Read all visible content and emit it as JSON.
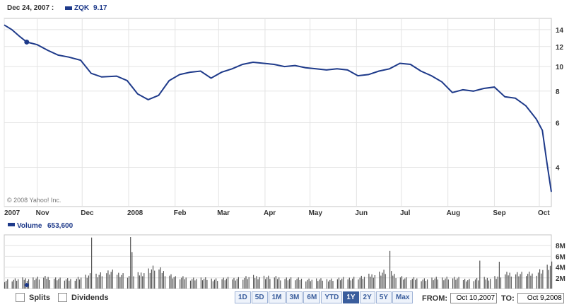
{
  "header": {
    "date": "Dec 24, 2007 :",
    "ticker": "ZQK",
    "value": "9.17",
    "series_color": "#1e3a8a"
  },
  "copyright": "© 2008 Yahoo! Inc.",
  "volume_header": {
    "label": "Volume",
    "value": "653,600"
  },
  "controls": {
    "splits_label": "Splits",
    "dividends_label": "Dividends",
    "ranges": [
      "1D",
      "5D",
      "1M",
      "3M",
      "6M",
      "YTD",
      "1Y",
      "2Y",
      "5Y",
      "Max"
    ],
    "active_range": "1Y",
    "from_label": "FROM:",
    "from_value": "Oct 10,2007",
    "to_label": "TO:",
    "to_value": "Oct 9,2008"
  },
  "chart_data": [
    {
      "type": "line",
      "title": "",
      "series": [
        {
          "name": "ZQK",
          "x": [
            "2007-10-10",
            "2007-10-15",
            "2007-10-20",
            "2007-10-25",
            "2007-11-01",
            "2007-11-08",
            "2007-11-15",
            "2007-11-22",
            "2007-11-30",
            "2007-12-07",
            "2007-12-14",
            "2007-12-24",
            "2007-12-31",
            "2008-01-07",
            "2008-01-14",
            "2008-01-21",
            "2008-01-28",
            "2008-02-04",
            "2008-02-11",
            "2008-02-18",
            "2008-02-25",
            "2008-03-03",
            "2008-03-10",
            "2008-03-17",
            "2008-03-24",
            "2008-03-31",
            "2008-04-07",
            "2008-04-14",
            "2008-04-21",
            "2008-04-28",
            "2008-05-05",
            "2008-05-12",
            "2008-05-19",
            "2008-05-26",
            "2008-06-02",
            "2008-06-09",
            "2008-06-16",
            "2008-06-23",
            "2008-06-30",
            "2008-07-07",
            "2008-07-14",
            "2008-07-21",
            "2008-07-28",
            "2008-08-04",
            "2008-08-11",
            "2008-08-18",
            "2008-08-25",
            "2008-09-01",
            "2008-09-08",
            "2008-09-15",
            "2008-09-22",
            "2008-09-29",
            "2008-10-03",
            "2008-10-06",
            "2008-10-09"
          ],
          "values": [
            14.6,
            14.0,
            13.2,
            12.5,
            12.2,
            11.6,
            11.1,
            10.9,
            10.6,
            9.4,
            9.1,
            9.17,
            8.8,
            7.8,
            7.4,
            7.7,
            8.8,
            9.3,
            9.5,
            9.6,
            9.0,
            9.5,
            9.8,
            10.2,
            10.4,
            10.3,
            10.2,
            10.0,
            10.1,
            9.9,
            9.8,
            9.7,
            9.8,
            9.7,
            9.2,
            9.3,
            9.6,
            9.8,
            10.3,
            10.2,
            9.6,
            9.2,
            8.7,
            7.9,
            8.1,
            8.0,
            8.2,
            8.3,
            7.6,
            7.5,
            7.0,
            6.2,
            5.6,
            4.2,
            3.2
          ]
        }
      ],
      "xaxis_labels": [
        "2007",
        "Nov",
        "Dec",
        "2008",
        "Feb",
        "Mar",
        "Apr",
        "May",
        "Jun",
        "Jul",
        "Aug",
        "Sep",
        "Oct"
      ],
      "yaxis_ticks": [
        4,
        6,
        8,
        10,
        12,
        14
      ],
      "ylim": [
        2.8,
        15.5
      ],
      "log_scale": true,
      "grid": true
    },
    {
      "type": "bar",
      "title": "",
      "series": [
        {
          "name": "Volume",
          "x": [
            "2007-10-10",
            "2007-10-25",
            "2007-11-08",
            "2007-11-22",
            "2007-12-06",
            "2007-12-20",
            "2008-01-04",
            "2008-01-18",
            "2008-02-01",
            "2008-02-15",
            "2008-02-29",
            "2008-03-14",
            "2008-03-28",
            "2008-04-11",
            "2008-04-25",
            "2008-05-09",
            "2008-05-23",
            "2008-06-06",
            "2008-06-20",
            "2008-07-04",
            "2008-07-18",
            "2008-08-01",
            "2008-08-15",
            "2008-08-29",
            "2008-09-12",
            "2008-09-26",
            "2008-10-09"
          ],
          "values": [
            1500000,
            1800000,
            2000000,
            1600000,
            2400000,
            3000000,
            2200000,
            3800000,
            2000000,
            1800000,
            1700000,
            1900000,
            2200000,
            1900000,
            1700000,
            1600000,
            1800000,
            2100000,
            3100000,
            1800000,
            1700000,
            2000000,
            1600000,
            1900000,
            2800000,
            2600000,
            4200000
          ]
        }
      ],
      "peaks": [
        {
          "x": "2007-12-07",
          "value": 9500000
        },
        {
          "x": "2008-01-02",
          "value": 9600000
        },
        {
          "x": "2008-01-03",
          "value": 6800000
        },
        {
          "x": "2008-06-23",
          "value": 7000000
        },
        {
          "x": "2008-08-22",
          "value": 5200000
        },
        {
          "x": "2008-09-04",
          "value": 5000000
        }
      ],
      "yaxis_ticks": [
        "2M",
        "4M",
        "6M",
        "8M"
      ],
      "ylim": [
        0,
        10000000
      ],
      "grid": true
    }
  ]
}
